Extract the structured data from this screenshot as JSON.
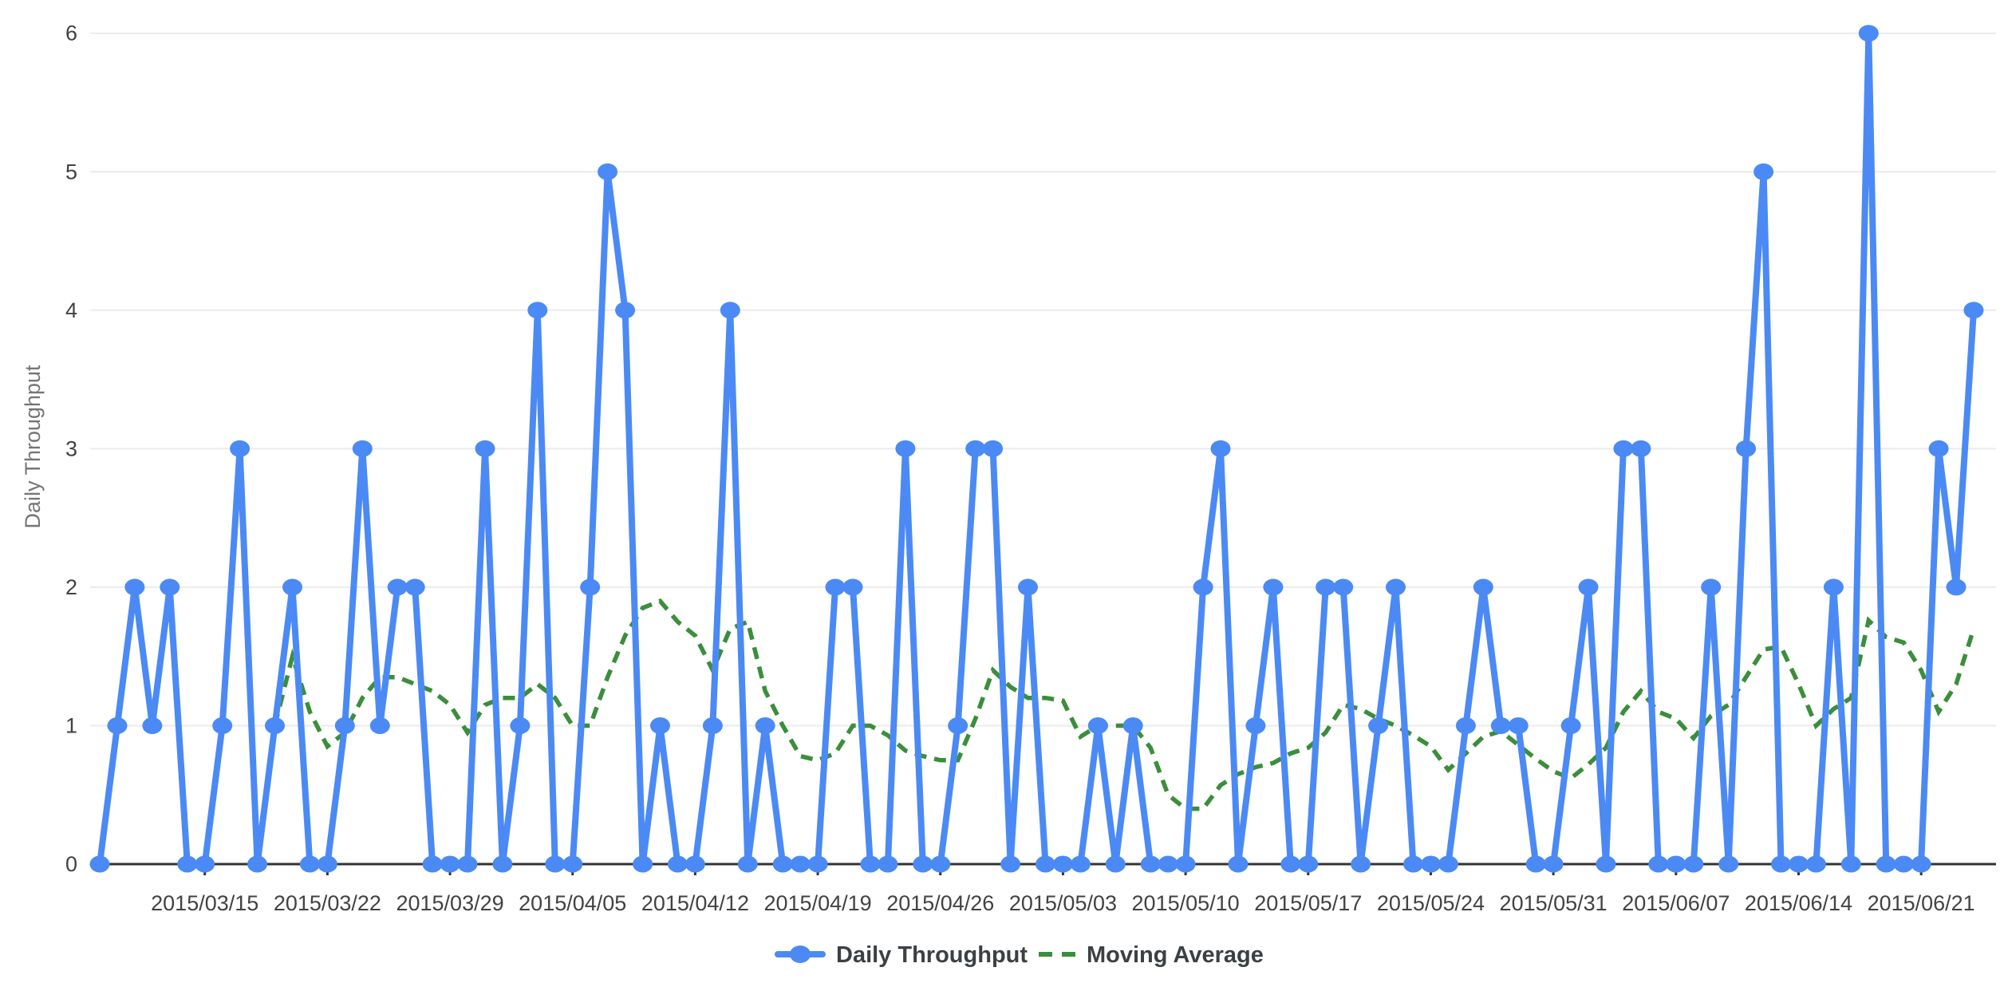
{
  "chart_data": {
    "type": "line",
    "title": "",
    "xlabel": "",
    "ylabel": "Daily Throughput",
    "ylim": [
      0,
      6
    ],
    "y_ticks": [
      0,
      1,
      2,
      3,
      4,
      5,
      6
    ],
    "grid": "horizontal",
    "legend_position": "bottom-center",
    "background_color": "#ffffff",
    "grid_color": "#ebebeb",
    "axis_color": "#333333",
    "tick_label_color": "#424242",
    "y_title_color": "#757575",
    "legend_text_color": "#3c4043",
    "x": [
      "2015/03/09",
      "2015/03/10",
      "2015/03/11",
      "2015/03/12",
      "2015/03/13",
      "2015/03/14",
      "2015/03/15",
      "2015/03/16",
      "2015/03/17",
      "2015/03/18",
      "2015/03/19",
      "2015/03/20",
      "2015/03/21",
      "2015/03/22",
      "2015/03/23",
      "2015/03/24",
      "2015/03/25",
      "2015/03/26",
      "2015/03/27",
      "2015/03/28",
      "2015/03/29",
      "2015/03/30",
      "2015/03/31",
      "2015/04/01",
      "2015/04/02",
      "2015/04/03",
      "2015/04/04",
      "2015/04/05",
      "2015/04/06",
      "2015/04/07",
      "2015/04/08",
      "2015/04/09",
      "2015/04/10",
      "2015/04/11",
      "2015/04/12",
      "2015/04/13",
      "2015/04/14",
      "2015/04/15",
      "2015/04/16",
      "2015/04/17",
      "2015/04/18",
      "2015/04/19",
      "2015/04/20",
      "2015/04/21",
      "2015/04/22",
      "2015/04/23",
      "2015/04/24",
      "2015/04/25",
      "2015/04/26",
      "2015/04/27",
      "2015/04/28",
      "2015/04/29",
      "2015/04/30",
      "2015/05/01",
      "2015/05/02",
      "2015/05/03",
      "2015/05/04",
      "2015/05/05",
      "2015/05/06",
      "2015/05/07",
      "2015/05/08",
      "2015/05/09",
      "2015/05/10",
      "2015/05/11",
      "2015/05/12",
      "2015/05/13",
      "2015/05/14",
      "2015/05/15",
      "2015/05/16",
      "2015/05/17",
      "2015/05/18",
      "2015/05/19",
      "2015/05/20",
      "2015/05/21",
      "2015/05/22",
      "2015/05/23",
      "2015/05/24",
      "2015/05/25",
      "2015/05/26",
      "2015/05/27",
      "2015/05/28",
      "2015/05/29",
      "2015/05/30",
      "2015/05/31",
      "2015/06/01",
      "2015/06/02",
      "2015/06/03",
      "2015/06/04",
      "2015/06/05",
      "2015/06/06",
      "2015/06/07",
      "2015/06/08",
      "2015/06/09",
      "2015/06/10",
      "2015/06/11",
      "2015/06/12",
      "2015/06/13",
      "2015/06/14",
      "2015/06/15",
      "2015/06/16",
      "2015/06/17",
      "2015/06/18",
      "2015/06/19",
      "2015/06/20",
      "2015/06/21",
      "2015/06/22",
      "2015/06/23",
      "2015/06/24"
    ],
    "x_tick_indices": [
      6,
      13,
      20,
      27,
      34,
      41,
      48,
      55,
      62,
      69,
      76,
      83,
      90,
      97,
      104
    ],
    "x_tick_labels": [
      "2015/03/15",
      "2015/03/22",
      "2015/03/29",
      "2015/04/05",
      "2015/04/12",
      "2015/04/19",
      "2015/04/26",
      "2015/05/03",
      "2015/05/10",
      "2015/05/17",
      "2015/05/24",
      "2015/05/31",
      "2015/06/07",
      "2015/06/14",
      "2015/06/21"
    ],
    "series": [
      {
        "name": "Daily Throughput",
        "color": "#4b8af5",
        "style": "solid",
        "points": true,
        "values": [
          0,
          1,
          2,
          1,
          2,
          0,
          0,
          1,
          3,
          0,
          1,
          2,
          0,
          0,
          1,
          3,
          1,
          2,
          2,
          0,
          0,
          0,
          3,
          0,
          1,
          4,
          0,
          0,
          2,
          5,
          4,
          0,
          1,
          0,
          0,
          1,
          4,
          0,
          1,
          0,
          0,
          0,
          2,
          2,
          0,
          0,
          3,
          0,
          0,
          1,
          3,
          3,
          0,
          2,
          0,
          0,
          0,
          1,
          0,
          1,
          0,
          0,
          0,
          2,
          3,
          0,
          1,
          2,
          0,
          0,
          2,
          2,
          0,
          1,
          2,
          0,
          0,
          0,
          1,
          2,
          1,
          1,
          0,
          0,
          1,
          2,
          0,
          3,
          3,
          0,
          0,
          0,
          2,
          0,
          3,
          5,
          0,
          0,
          0,
          2,
          0,
          6,
          0,
          0,
          0,
          3,
          2,
          4
        ]
      },
      {
        "name": "Moving Average",
        "color": "#3b8e3b",
        "style": "dashed",
        "points": false,
        "values": [
          null,
          null,
          null,
          null,
          null,
          null,
          null,
          null,
          null,
          null,
          1.0,
          1.5,
          1.1,
          0.85,
          0.95,
          1.2,
          1.35,
          1.35,
          1.3,
          1.25,
          1.15,
          0.95,
          1.15,
          1.2,
          1.2,
          1.3,
          1.2,
          1.0,
          1.0,
          1.35,
          1.65,
          1.85,
          1.9,
          1.75,
          1.65,
          1.4,
          1.7,
          1.75,
          1.25,
          1.0,
          0.78,
          0.75,
          0.8,
          1.0,
          1.0,
          0.93,
          0.82,
          0.78,
          0.75,
          0.75,
          1.05,
          1.4,
          1.28,
          1.2,
          1.2,
          1.18,
          0.92,
          1.0,
          1.0,
          1.0,
          0.84,
          0.5,
          0.4,
          0.4,
          0.57,
          0.65,
          0.7,
          0.73,
          0.8,
          0.84,
          0.95,
          1.15,
          1.12,
          1.05,
          1.0,
          0.93,
          0.85,
          0.68,
          0.8,
          0.92,
          0.96,
          0.86,
          0.76,
          0.67,
          0.62,
          0.72,
          0.84,
          1.1,
          1.25,
          1.1,
          1.05,
          0.91,
          1.07,
          1.15,
          1.35,
          1.55,
          1.57,
          1.3,
          1.0,
          1.12,
          1.2,
          1.76,
          1.64,
          1.6,
          1.4,
          1.1,
          1.3,
          1.7
        ]
      }
    ]
  }
}
